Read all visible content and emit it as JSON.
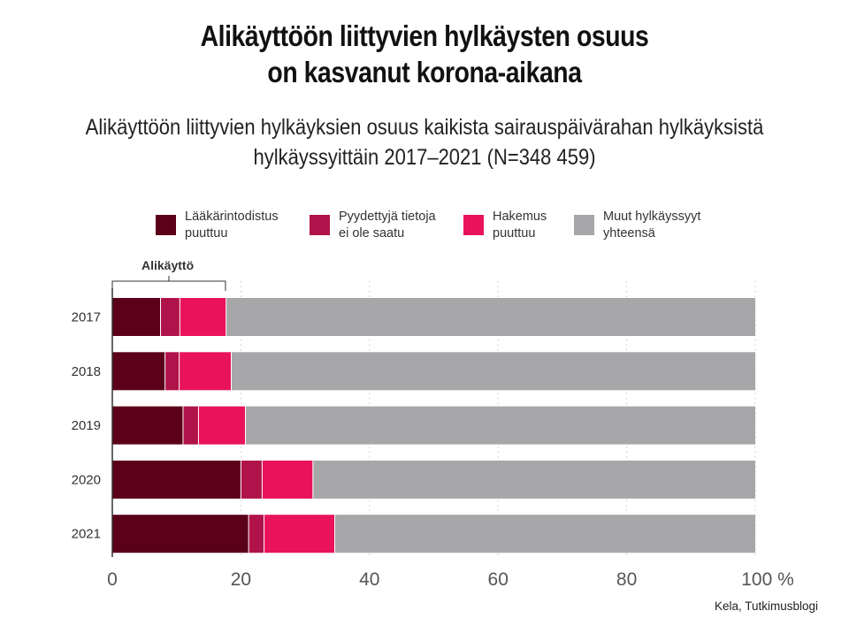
{
  "title": {
    "line1": "Alikäyttöön liittyvien hylkäysten osuus",
    "line2": "on kasvanut korona-aikana"
  },
  "subtitle": {
    "line1": "Alikäyttöön liittyvien hylkäyksien osuus kaikista sairauspäivärahan hylkäyksistä",
    "line2": "hylkäyssyittäin 2017–2021 (N=348 459)"
  },
  "bracket_label": "Alikäyttö",
  "source": "Kela, Tutkimusblogi",
  "chart_data": {
    "type": "bar",
    "orientation": "horizontal",
    "stacked": true,
    "categories": [
      "2017",
      "2018",
      "2019",
      "2020",
      "2021"
    ],
    "series": [
      {
        "name": "Lääkärintodistus\npuuttuu",
        "color": "#5b0019",
        "values": [
          7.5,
          8.2,
          11.0,
          20.0,
          21.2
        ]
      },
      {
        "name": "Pyydettyjä tietoja\nei ole saatu",
        "color": "#b0124a",
        "values": [
          3.0,
          2.2,
          2.4,
          3.3,
          2.4
        ]
      },
      {
        "name": "Hakemus\npuuttuu",
        "color": "#e8135a",
        "values": [
          7.2,
          8.1,
          7.3,
          7.9,
          11.0
        ]
      },
      {
        "name": "Muut hylkäyssyyt\nyhteensä",
        "color": "#a7a6a8",
        "values": [
          82.3,
          81.5,
          79.3,
          68.8,
          65.4
        ]
      }
    ],
    "xlim": [
      0,
      100
    ],
    "xticks": [
      "0",
      "20",
      "40",
      "60",
      "80",
      "100 %"
    ],
    "xtick_values": [
      0,
      20,
      40,
      60,
      80,
      100
    ],
    "grid": true,
    "legend_position": "top"
  }
}
